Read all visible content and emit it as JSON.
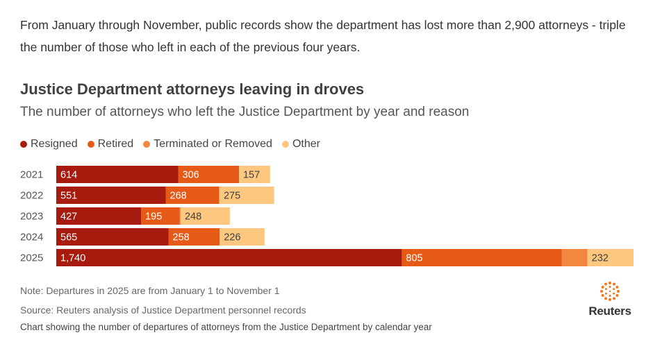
{
  "intro_text": "From January through November, public records show the department has lost more than 2,900 attorneys - triple the number of those who left in each of the previous four years.",
  "chart_data": {
    "type": "bar",
    "orientation": "horizontal",
    "stacked": true,
    "title": "Justice Department attorneys leaving in droves",
    "subtitle": "The number of attorneys who left the Justice Department by year and reason",
    "legend_position": "top-left",
    "categories": [
      "2021",
      "2022",
      "2023",
      "2024",
      "2025"
    ],
    "series": [
      {
        "name": "Resigned",
        "color": "#a71a0e",
        "label_color": "#ffffff",
        "values": [
          614,
          551,
          427,
          565,
          1740
        ],
        "labels": [
          "614",
          "551",
          "427",
          "565",
          "1,740"
        ]
      },
      {
        "name": "Retired",
        "color": "#e45a16",
        "label_color": "#ffffff",
        "values": [
          306,
          268,
          195,
          258,
          805
        ],
        "labels": [
          "306",
          "268",
          "195",
          "258",
          "805"
        ]
      },
      {
        "name": "Terminated or Removed",
        "color": "#f3873f",
        "label_color": "#ffffff",
        "values": [
          0,
          3,
          4,
          0,
          130
        ],
        "labels": [
          "",
          "",
          "",
          "",
          ""
        ]
      },
      {
        "name": "Other",
        "color": "#fdc77f",
        "label_color": "#404040",
        "values": [
          157,
          275,
          248,
          226,
          232
        ],
        "labels": [
          "157",
          "275",
          "248",
          "226",
          "232"
        ]
      }
    ],
    "xlim": [
      0,
      2907
    ],
    "note": "Note: Departures in 2025 are from January 1 to November 1",
    "source": "Source: Reuters analysis of Justice Department personnel records"
  },
  "caption": "Chart showing the number of departures of attorneys from the Justice Department by calendar year",
  "logo": {
    "name": "Reuters"
  }
}
